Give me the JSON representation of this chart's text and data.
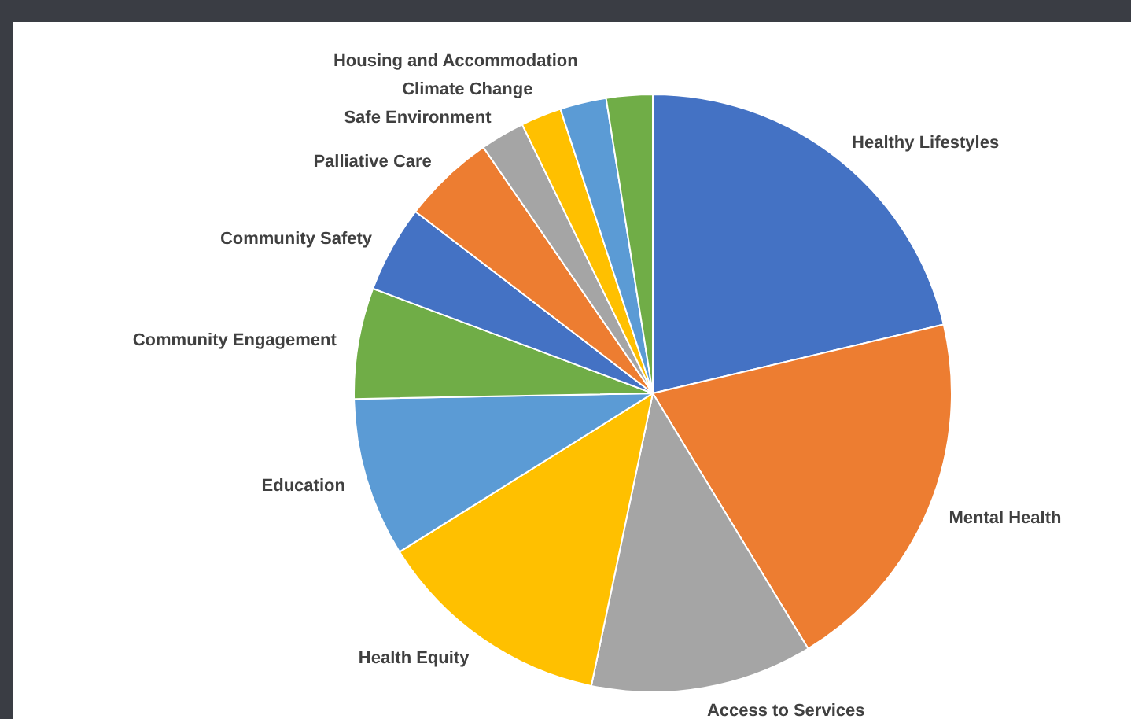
{
  "chart_data": {
    "type": "pie",
    "categories": [
      "Healthy Lifestyles",
      "Mental Health",
      "Access to Services",
      "Health Equity",
      "Education",
      "Community Engagement",
      "Community Safety",
      "Palliative Care",
      "Safe Environment",
      "Climate Change",
      "Housing and Accommodation",
      null
    ],
    "values": [
      21.3,
      20,
      12,
      12.8,
      8.6,
      6,
      4.7,
      5,
      2.4,
      2.2,
      2.5,
      2.5
    ],
    "colors": [
      "#4472c4",
      "#ed7d31",
      "#a5a5a5",
      "#ffc000",
      "#5b9bd5",
      "#70ad47",
      "#4472c4",
      "#ed7d31",
      "#a5a5a5",
      "#ffc000",
      "#5b9bd5",
      "#70ad47"
    ]
  }
}
